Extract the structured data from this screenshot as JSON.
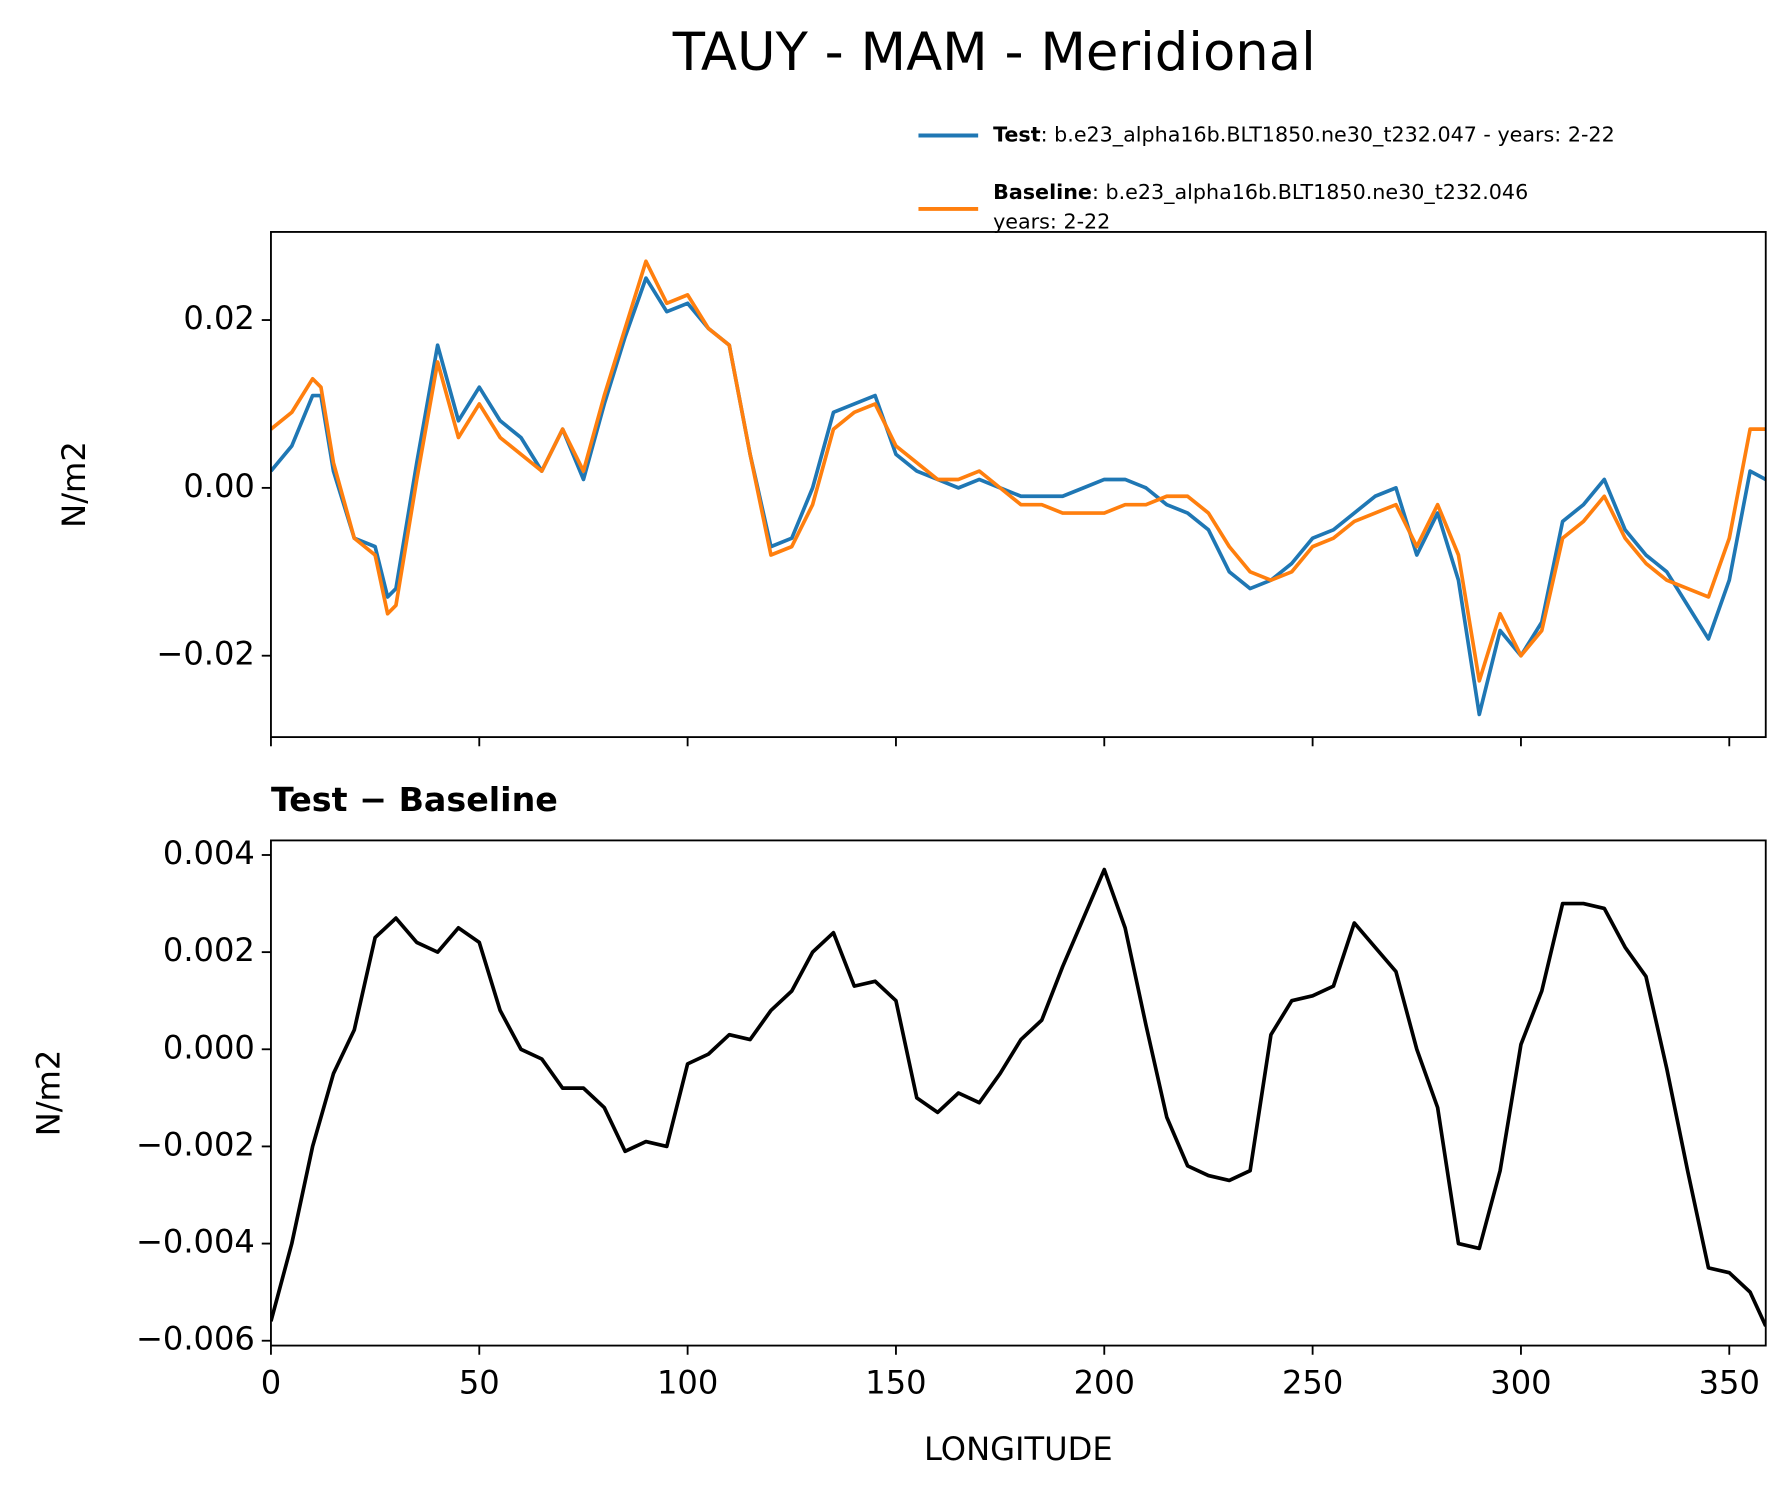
{
  "chart_data": [
    {
      "type": "line",
      "title": "TAUY - MAM - Meridional",
      "ylabel": "N/m2",
      "x": [
        0,
        5,
        10,
        12,
        15,
        20,
        25,
        28,
        30,
        35,
        40,
        45,
        50,
        55,
        60,
        65,
        70,
        75,
        80,
        85,
        90,
        95,
        100,
        105,
        110,
        115,
        120,
        125,
        130,
        135,
        140,
        145,
        150,
        155,
        160,
        165,
        170,
        175,
        180,
        185,
        190,
        195,
        200,
        205,
        210,
        215,
        220,
        225,
        230,
        235,
        240,
        245,
        250,
        255,
        260,
        265,
        270,
        275,
        280,
        285,
        290,
        295,
        300,
        305,
        310,
        315,
        320,
        325,
        330,
        335,
        340,
        345,
        350,
        355,
        358.75
      ],
      "series": [
        {
          "name": "Test",
          "description": [
            ": b.e23_alpha16b.BLT1850.ne30_t232.047 - years: 2-22"
          ],
          "color": "#1f77b4",
          "values": [
            0.002,
            0.005,
            0.011,
            0.011,
            0.002,
            -0.006,
            -0.007,
            -0.013,
            -0.012,
            0.003,
            0.017,
            0.008,
            0.012,
            0.008,
            0.006,
            0.002,
            0.007,
            0.001,
            0.01,
            0.018,
            0.025,
            0.021,
            0.022,
            0.019,
            0.017,
            0.004,
            -0.007,
            -0.006,
            0.0,
            0.009,
            0.01,
            0.011,
            0.004,
            0.002,
            0.001,
            0.0,
            0.001,
            0.0,
            -0.001,
            -0.001,
            -0.001,
            0.0,
            0.001,
            0.001,
            0.0,
            -0.002,
            -0.003,
            -0.005,
            -0.01,
            -0.012,
            -0.011,
            -0.009,
            -0.006,
            -0.005,
            -0.003,
            -0.001,
            0.0,
            -0.008,
            -0.003,
            -0.011,
            -0.027,
            -0.017,
            -0.02,
            -0.016,
            -0.004,
            -0.002,
            0.001,
            -0.005,
            -0.008,
            -0.01,
            -0.014,
            -0.018,
            -0.011,
            0.002,
            0.001
          ]
        },
        {
          "name": "Baseline",
          "description": [
            ": b.e23_alpha16b.BLT1850.ne30_t232.046",
            "years: 2-22"
          ],
          "color": "#ff7f0e",
          "values": [
            0.007,
            0.009,
            0.013,
            0.012,
            0.003,
            -0.006,
            -0.008,
            -0.015,
            -0.014,
            0.001,
            0.015,
            0.006,
            0.01,
            0.006,
            0.004,
            0.002,
            0.007,
            0.002,
            0.011,
            0.019,
            0.027,
            0.022,
            0.023,
            0.019,
            0.017,
            0.004,
            -0.008,
            -0.007,
            -0.002,
            0.007,
            0.009,
            0.01,
            0.005,
            0.003,
            0.001,
            0.001,
            0.002,
            0.0,
            -0.002,
            -0.002,
            -0.003,
            -0.003,
            -0.003,
            -0.002,
            -0.002,
            -0.001,
            -0.001,
            -0.003,
            -0.007,
            -0.01,
            -0.011,
            -0.01,
            -0.007,
            -0.006,
            -0.004,
            -0.003,
            -0.002,
            -0.007,
            -0.002,
            -0.008,
            -0.023,
            -0.015,
            -0.02,
            -0.017,
            -0.006,
            -0.004,
            -0.001,
            -0.006,
            -0.009,
            -0.011,
            -0.012,
            -0.013,
            -0.006,
            0.007,
            0.007
          ]
        }
      ],
      "xlim": [
        0,
        358.75
      ],
      "xticks": [
        0,
        50,
        100,
        150,
        200,
        250,
        300,
        350
      ],
      "xticklabels": false,
      "ylim": [
        -0.0297,
        0.0305
      ],
      "yticks": [
        {
          "value": -0.02,
          "label": "−0.02"
        },
        {
          "value": 0,
          "label": "0.00"
        },
        {
          "value": 0.02,
          "label": "0.02"
        }
      ]
    },
    {
      "type": "line",
      "title": "Test − Baseline",
      "ylabel": "N/m2",
      "xlabel": "LONGITUDE",
      "x": [
        0,
        5,
        10,
        15,
        20,
        25,
        30,
        35,
        40,
        45,
        50,
        55,
        60,
        65,
        70,
        75,
        80,
        85,
        90,
        95,
        100,
        105,
        110,
        115,
        120,
        125,
        130,
        135,
        140,
        145,
        150,
        155,
        160,
        165,
        170,
        175,
        180,
        185,
        190,
        195,
        200,
        205,
        210,
        215,
        220,
        225,
        230,
        235,
        240,
        245,
        250,
        255,
        260,
        265,
        270,
        275,
        280,
        285,
        290,
        295,
        300,
        305,
        310,
        315,
        320,
        325,
        330,
        335,
        340,
        345,
        350,
        355,
        358.75
      ],
      "series": [
        {
          "color": "#000000",
          "values": [
            -0.0056,
            -0.004,
            -0.002,
            -0.0005,
            0.0004,
            0.0023,
            0.0027,
            0.0022,
            0.002,
            0.0025,
            0.0022,
            0.0008,
            0.0,
            -0.0002,
            -0.0008,
            -0.0008,
            -0.0012,
            -0.0021,
            -0.0019,
            -0.002,
            -0.0003,
            -0.0001,
            0.0003,
            0.0002,
            0.0008,
            0.0012,
            0.002,
            0.0024,
            0.0013,
            0.0014,
            0.001,
            -0.001,
            -0.0013,
            -0.0009,
            -0.0011,
            -0.0005,
            0.0002,
            0.0006,
            0.0017,
            0.0027,
            0.0037,
            0.0025,
            0.0005,
            -0.0014,
            -0.0024,
            -0.0026,
            -0.0027,
            -0.0025,
            0.0003,
            0.001,
            0.0011,
            0.0013,
            0.0026,
            0.0021,
            0.0016,
            0.0,
            -0.0012,
            -0.004,
            -0.0041,
            -0.0025,
            0.0001,
            0.0012,
            0.003,
            0.003,
            0.0029,
            0.0021,
            0.0015,
            -0.0004,
            -0.0025,
            -0.0045,
            -0.0046,
            -0.005,
            -0.0057
          ]
        }
      ],
      "xlim": [
        0,
        358.75
      ],
      "xticks": [
        0,
        50,
        100,
        150,
        200,
        250,
        300,
        350
      ],
      "ylim": [
        -0.0061,
        0.0043
      ],
      "yticks": [
        {
          "value": -0.006,
          "label": "−0.006"
        },
        {
          "value": -0.004,
          "label": "−0.004"
        },
        {
          "value": -0.002,
          "label": "−0.002"
        },
        {
          "value": 0,
          "label": "0.000"
        },
        {
          "value": 0.002,
          "label": "0.002"
        },
        {
          "value": 0.004,
          "label": "0.004"
        }
      ]
    }
  ]
}
